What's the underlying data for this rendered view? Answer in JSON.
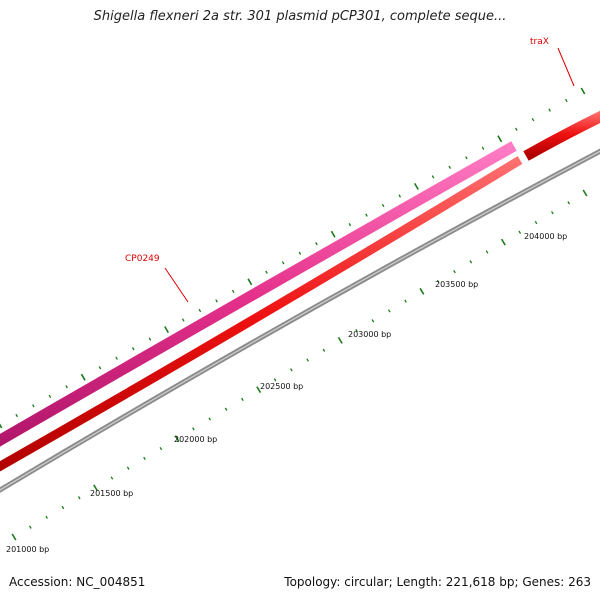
{
  "title": "Shigella flexneri 2a str. 301 plasmid pCP301, complete seque...",
  "footer": {
    "accession": "Accession: NC_004851",
    "summary": "Topology: circular; Length: 221,618 bp; Genes: 263"
  },
  "scale_labels": [
    "201000 bp",
    "201500 bp",
    "202000 bp",
    "202500 bp",
    "203000 bp",
    "203500 bp",
    "204000 bp"
  ],
  "genes": [
    {
      "name": "CP0249",
      "strand": "forward",
      "color": "#e5318b"
    },
    {
      "name": "traX",
      "strand": "forward",
      "color": "#ee1111"
    },
    {
      "name": "",
      "strand": "reverse",
      "color": "#ee1111"
    }
  ],
  "colors": {
    "backbone": "#8c8c8c",
    "ticks": "#1b7a1b",
    "label_red": "#dd0000"
  }
}
